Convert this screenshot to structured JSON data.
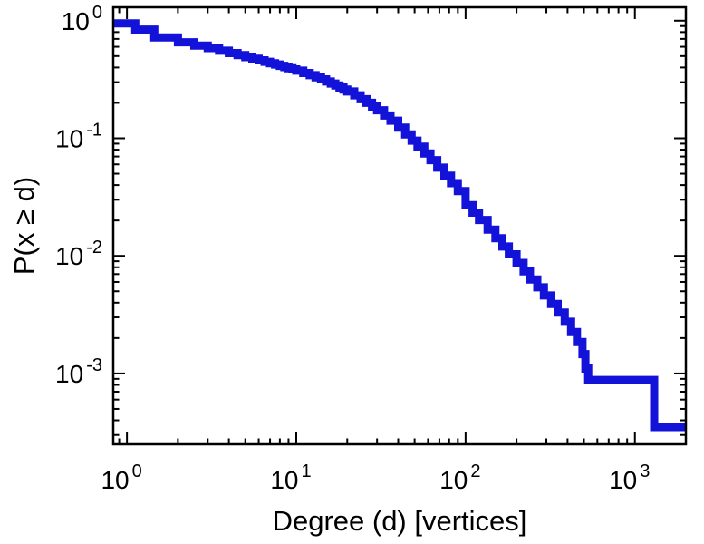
{
  "chart_data": {
    "type": "line",
    "subtype": "ccdf-step",
    "title": "",
    "xlabel": "Degree (d) [vertices]",
    "ylabel": "P(x ≥ d)",
    "xscale": "log",
    "yscale": "log",
    "xlim": [
      0.83,
      2000
    ],
    "ylim": [
      0.00025,
      1.3
    ],
    "grid": false,
    "legend": "none",
    "line_color": "#1212D8",
    "line_width": 9,
    "axis_color": "#000000",
    "tick_base": "10",
    "x_ticks": [
      {
        "value": 1,
        "exp": "0"
      },
      {
        "value": 10,
        "exp": "1"
      },
      {
        "value": 100,
        "exp": "2"
      },
      {
        "value": 1000,
        "exp": "3"
      }
    ],
    "y_ticks": [
      {
        "value": 1,
        "exp": "0"
      },
      {
        "value": 0.1,
        "exp": "-1"
      },
      {
        "value": 0.01,
        "exp": "-2"
      },
      {
        "value": 0.001,
        "exp": "-3"
      }
    ],
    "points": [
      [
        0.83,
        0.95
      ],
      [
        1.12,
        0.84
      ],
      [
        1.45,
        0.72
      ],
      [
        2,
        0.655
      ],
      [
        2.5,
        0.615
      ],
      [
        3,
        0.585
      ],
      [
        3.5,
        0.555
      ],
      [
        4,
        0.53
      ],
      [
        4.5,
        0.51
      ],
      [
        5,
        0.49
      ],
      [
        5.5,
        0.475
      ],
      [
        6,
        0.46
      ],
      [
        6.5,
        0.447
      ],
      [
        7,
        0.435
      ],
      [
        7.5,
        0.424
      ],
      [
        8,
        0.413
      ],
      [
        8.5,
        0.403
      ],
      [
        9,
        0.394
      ],
      [
        9.5,
        0.385
      ],
      [
        10,
        0.376
      ],
      [
        11,
        0.359
      ],
      [
        12,
        0.344
      ],
      [
        13,
        0.33
      ],
      [
        14,
        0.317
      ],
      [
        15,
        0.304
      ],
      [
        16,
        0.292
      ],
      [
        17,
        0.281
      ],
      [
        18,
        0.27
      ],
      [
        19,
        0.26
      ],
      [
        20,
        0.25
      ],
      [
        22,
        0.232
      ],
      [
        24,
        0.215
      ],
      [
        26,
        0.2
      ],
      [
        28,
        0.186
      ],
      [
        30,
        0.173
      ],
      [
        33,
        0.156
      ],
      [
        36,
        0.141
      ],
      [
        40,
        0.123
      ],
      [
        44,
        0.108
      ],
      [
        48,
        0.0955
      ],
      [
        52,
        0.0848
      ],
      [
        57,
        0.0742
      ],
      [
        62,
        0.0652
      ],
      [
        68,
        0.0563
      ],
      [
        75,
        0.0481
      ],
      [
        82,
        0.0415
      ],
      [
        90,
        0.0356
      ],
      [
        100,
        0.027
      ],
      [
        110,
        0.0233
      ],
      [
        120,
        0.0202
      ],
      [
        135,
        0.0167
      ],
      [
        150,
        0.0141
      ],
      [
        165,
        0.012
      ],
      [
        180,
        0.0103
      ],
      [
        200,
        0.0087
      ],
      [
        220,
        0.0074
      ],
      [
        240,
        0.0063
      ],
      [
        265,
        0.0054
      ],
      [
        290,
        0.0046
      ],
      [
        320,
        0.0039
      ],
      [
        350,
        0.0033
      ],
      [
        385,
        0.00275
      ],
      [
        420,
        0.00225
      ],
      [
        455,
        0.00185
      ],
      [
        490,
        0.00146
      ],
      [
        510,
        0.0011
      ],
      [
        530,
        0.00088
      ],
      [
        1300,
        0.00035
      ]
    ]
  }
}
